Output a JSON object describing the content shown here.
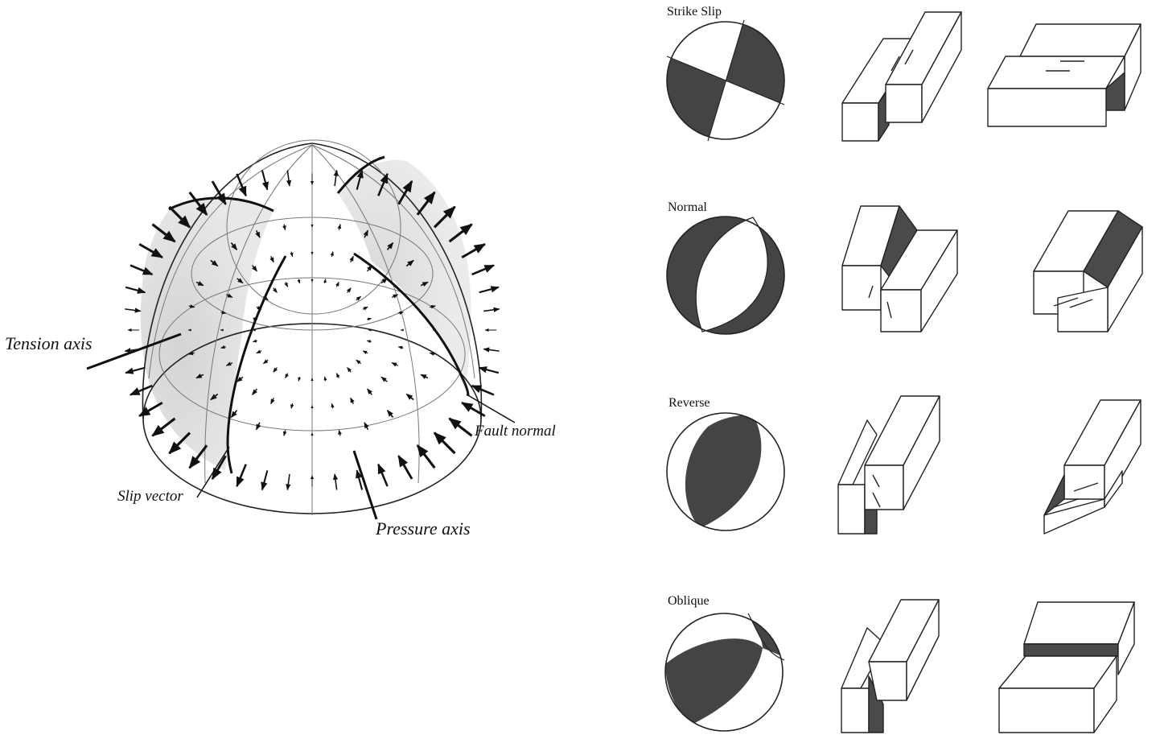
{
  "sphere_diagram": {
    "labels": {
      "tension_axis": "Tension axis",
      "fault_normal": "Fault normal",
      "slip_vector": "Slip vector",
      "pressure_axis": "Pressure axis"
    }
  },
  "mechanisms": [
    {
      "id": "strike-slip",
      "label": "Strike Slip"
    },
    {
      "id": "normal",
      "label": "Normal"
    },
    {
      "id": "reverse",
      "label": "Reverse"
    },
    {
      "id": "oblique",
      "label": "Oblique"
    }
  ],
  "colors": {
    "ink": "#111111",
    "compressional_fill": "#444444",
    "shading": "#d8d8d8"
  }
}
